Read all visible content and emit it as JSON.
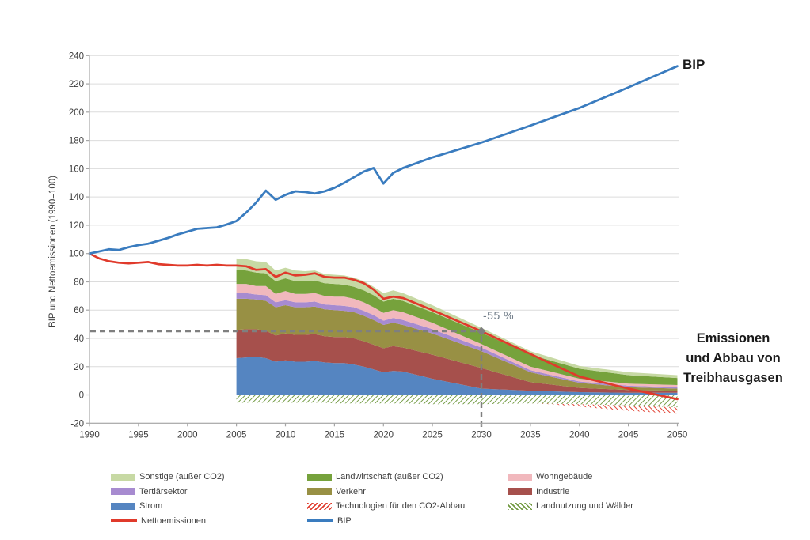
{
  "chart": {
    "annotations": {
      "bip_label": "BIP",
      "target_label": "-55 %",
      "emissions_lines": [
        "Emissionen",
        "und Abbau von",
        "Treibhausgasen"
      ]
    }
  },
  "chart_data": {
    "type": "area",
    "subtype": "stacked-area-with-lines",
    "title": "",
    "xlabel": "",
    "ylabel": "BIP und Nettoemissionen (1990=100)",
    "x_range": [
      1990,
      2050
    ],
    "y_range": [
      -20,
      240
    ],
    "x_ticks": [
      1990,
      1995,
      2000,
      2005,
      2010,
      2015,
      2020,
      2025,
      2030,
      2035,
      2040,
      2045,
      2050
    ],
    "y_tick_step": 20,
    "grid": true,
    "grid_color": "#dcdcdc",
    "axis_color": "#a6a6a6",
    "tick_label_color": "#3d3d3d",
    "annotation": {
      "target_year": 2030,
      "target_value": 45,
      "dash_color": "#7f7f7f"
    },
    "lines": [
      {
        "name": "Nettoemissionen",
        "color": "#e03a2b",
        "width": 2.7,
        "x": [
          1990,
          1991,
          1992,
          1993,
          1994,
          1995,
          1996,
          1997,
          1998,
          1999,
          2000,
          2001,
          2002,
          2003,
          2004,
          2005,
          2006,
          2007,
          2008,
          2009,
          2010,
          2011,
          2012,
          2013,
          2014,
          2015,
          2016,
          2017,
          2018,
          2019,
          2020,
          2021,
          2022,
          2025,
          2030,
          2035,
          2037,
          2040,
          2045,
          2050
        ],
        "y": [
          100,
          96.5,
          94.5,
          93.5,
          93,
          93.5,
          94,
          92.5,
          92,
          91.5,
          91.5,
          92,
          91.5,
          92,
          91.5,
          91.5,
          91,
          88.5,
          89,
          83.5,
          86.5,
          84.5,
          85,
          86,
          83.5,
          83,
          83,
          81.5,
          79,
          74.5,
          68,
          69.5,
          68.5,
          60,
          45,
          29,
          22.5,
          13,
          4.5,
          -3
        ]
      },
      {
        "name": "BIP",
        "color": "#3a7cbf",
        "width": 2.8,
        "x": [
          1990,
          1991,
          1992,
          1993,
          1994,
          1995,
          1996,
          1997,
          1998,
          1999,
          2000,
          2001,
          2002,
          2003,
          2004,
          2005,
          2006,
          2007,
          2008,
          2009,
          2010,
          2011,
          2012,
          2013,
          2014,
          2015,
          2016,
          2017,
          2018,
          2019,
          2020,
          2021,
          2022,
          2025,
          2030,
          2035,
          2040,
          2045,
          2050
        ],
        "y": [
          100,
          101.5,
          103,
          102.5,
          104.5,
          106,
          107,
          109,
          111,
          113.5,
          115.5,
          117.5,
          118,
          118.5,
          120.5,
          123,
          129,
          136,
          144.5,
          138,
          141.5,
          144,
          143.5,
          142.5,
          144,
          146.5,
          150,
          154,
          158,
          160.5,
          149.5,
          157,
          160.5,
          168,
          178.5,
          190.5,
          203,
          217.5,
          232.5
        ]
      }
    ],
    "stack": {
      "x": [
        2005,
        2006,
        2007,
        2008,
        2009,
        2010,
        2011,
        2012,
        2013,
        2014,
        2015,
        2016,
        2017,
        2018,
        2019,
        2020,
        2021,
        2022,
        2025,
        2030,
        2035,
        2037,
        2040,
        2045,
        2050
      ],
      "series": [
        {
          "name": "Strom",
          "color": "#5585c1",
          "values": [
            26,
            26.5,
            27,
            26,
            23.5,
            24.5,
            23.5,
            23.5,
            24,
            23,
            22.5,
            22.5,
            21.5,
            20,
            18,
            16,
            17,
            16.5,
            11.5,
            4.5,
            3,
            2.6,
            2,
            1.5,
            1.5
          ]
        },
        {
          "name": "Industrie",
          "color": "#a6504c",
          "values": [
            20,
            20,
            19.5,
            19.5,
            18.5,
            19,
            19,
            19,
            19,
            18.5,
            18.5,
            18.5,
            18.5,
            18,
            17.5,
            17,
            17.5,
            17,
            17,
            14.5,
            6,
            4.8,
            3,
            2,
            1.5
          ]
        },
        {
          "name": "Verkehr",
          "color": "#989044",
          "values": [
            22,
            21.5,
            21,
            21,
            20,
            20,
            19.5,
            19.5,
            19.5,
            19,
            19,
            18.5,
            18.5,
            18,
            17.5,
            16.5,
            16.5,
            16,
            15,
            12,
            7,
            5.6,
            3.5,
            2,
            1.5
          ]
        },
        {
          "name": "Tertiärsektor",
          "color": "#a78bd0",
          "values": [
            4,
            4,
            3.5,
            4,
            3.5,
            3.5,
            3.5,
            3.5,
            3.5,
            3.5,
            3.5,
            3.5,
            3.5,
            3.5,
            3.5,
            3,
            3.5,
            3.5,
            3,
            2.5,
            1.5,
            1.3,
            1,
            1,
            1
          ]
        },
        {
          "name": "Wohngebäude",
          "color": "#f1b8bd",
          "values": [
            6.5,
            6.5,
            6,
            6.5,
            6,
            6.5,
            6,
            6,
            6,
            6,
            6,
            6.5,
            6,
            6,
            5.5,
            5.5,
            5.5,
            5.5,
            4.5,
            2.5,
            2.5,
            2.3,
            2,
            1.5,
            1.5
          ]
        },
        {
          "name": "Landwirtschaft (außer CO2)",
          "color": "#76a23c",
          "values": [
            10,
            9.5,
            9.5,
            9,
            9,
            9,
            9,
            9,
            9,
            9,
            9,
            8.5,
            8.5,
            8.5,
            8.5,
            8,
            8,
            8,
            7.5,
            8,
            8.5,
            7.9,
            7,
            6,
            5
          ]
        },
        {
          "name": "Sonstige (außer CO2)",
          "color": "#c7d9a4",
          "values": [
            8,
            8,
            8,
            8,
            7.5,
            7.5,
            7.5,
            7,
            7,
            6.5,
            6.5,
            6.5,
            6.5,
            6.5,
            6,
            6,
            6,
            5.5,
            5,
            3.5,
            2.5,
            2.3,
            2,
            2,
            2
          ]
        }
      ],
      "negative_series": [
        {
          "name": "Landnutzung und Wälder",
          "hatch": "green",
          "color": "#70993f",
          "values": [
            5.5,
            5.5,
            5.5,
            5.5,
            5.5,
            5.5,
            5.5,
            5.5,
            5.5,
            5.5,
            6,
            6,
            6,
            6,
            6,
            6,
            6,
            6,
            6.5,
            6.5,
            6,
            6.2,
            6.5,
            7.5,
            8.7
          ]
        },
        {
          "name": "Technologien für den CO2-Abbau",
          "hatch": "red",
          "color": "#e03a2b",
          "values": [
            0,
            0,
            0,
            0,
            0,
            0,
            0,
            0,
            0,
            0,
            0,
            0,
            0,
            0,
            0,
            0,
            0,
            0,
            0,
            0,
            0,
            0.4,
            1.8,
            3.7,
            4.6
          ]
        }
      ]
    }
  },
  "legend": {
    "columns": [
      {
        "items": [
          {
            "label": "Sonstige (außer CO2)",
            "swatch": "fill",
            "color": "#c7d9a4"
          },
          {
            "label": "Tertiärsektor",
            "swatch": "fill",
            "color": "#a78bd0"
          },
          {
            "label": "Strom",
            "swatch": "fill",
            "color": "#5585c1"
          },
          {
            "label": "Nettoemissionen",
            "swatch": "line",
            "color": "#e03a2b"
          }
        ]
      },
      {
        "items": [
          {
            "label": "Landwirtschaft (außer CO2)",
            "swatch": "fill",
            "color": "#76a23c"
          },
          {
            "label": "Verkehr",
            "swatch": "fill",
            "color": "#989044"
          },
          {
            "label": "Technologien für den CO2-Abbau",
            "swatch": "hatch-red",
            "color": "#e03a2b"
          },
          {
            "label": "BIP",
            "swatch": "line",
            "color": "#3a7cbf"
          }
        ]
      },
      {
        "items": [
          {
            "label": "Wohngebäude",
            "swatch": "fill",
            "color": "#f1b8bd"
          },
          {
            "label": "Industrie",
            "swatch": "fill",
            "color": "#a6504c"
          },
          {
            "label": "Landnutzung und Wälder",
            "swatch": "hatch-green",
            "color": "#70993f"
          }
        ]
      }
    ]
  }
}
